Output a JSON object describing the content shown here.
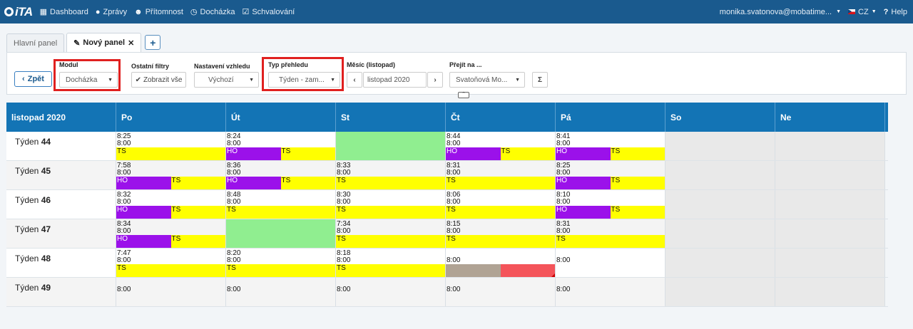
{
  "topbar": {
    "logo_text": "iTA",
    "nav": [
      {
        "icon": "grid-icon",
        "glyph": "▦",
        "label": "Dashboard"
      },
      {
        "icon": "info-icon",
        "glyph": "●",
        "label": "Zprávy"
      },
      {
        "icon": "users-icon",
        "glyph": "☻",
        "label": "Přítomnost"
      },
      {
        "icon": "clock-icon",
        "glyph": "◷",
        "label": "Docházka"
      },
      {
        "icon": "check-square-icon",
        "glyph": "☑",
        "label": "Schvalování"
      }
    ],
    "user": "monika.svatonova@mobatime...",
    "language": "CZ",
    "help": "Help"
  },
  "tabs": [
    {
      "label": "Hlavní panel",
      "active": false
    },
    {
      "label": "Nový panel",
      "active": true
    }
  ],
  "filters": {
    "back_label": "Zpět",
    "modul_label": "Modul",
    "modul_value": "Docházka",
    "other_filters_label": "Ostatní filtry",
    "show_all_label": "Zobrazit vše",
    "appearance_label": "Nastavení vzhledu",
    "appearance_value": "Výchozí",
    "view_type_label": "Typ přehledu",
    "view_type_value": "Týden - zam...",
    "month_label": "Měsíc (listopad)",
    "month_value": "listopad 2020",
    "goto_label": "Přejít na ...",
    "goto_value": "Svatoňová Mo...",
    "sigma": "Σ"
  },
  "calendar": {
    "title": "listopad 2020",
    "days": [
      "Po",
      "Út",
      "St",
      "Čt",
      "Pá",
      "So",
      "Ne"
    ],
    "weeks": [
      {
        "label": "Týden",
        "num": "44",
        "cells": [
          {
            "t1": "8:25",
            "t2": "8:00",
            "bar": [
              "ts"
            ]
          },
          {
            "t1": "8:24",
            "t2": "8:00",
            "bar": [
              "ho",
              "ts"
            ]
          },
          {
            "green": true
          },
          {
            "t1": "8:44",
            "t2": "8:00",
            "bar": [
              "ho",
              "ts"
            ]
          },
          {
            "t1": "8:41",
            "t2": "8:00",
            "bar": [
              "ho",
              "ts"
            ]
          }
        ]
      },
      {
        "label": "Týden",
        "num": "45",
        "cells": [
          {
            "t1": "7:58",
            "t2": "8:00",
            "bar": [
              "ho",
              "ts"
            ]
          },
          {
            "t1": "8:36",
            "t2": "8:00",
            "bar": [
              "ho",
              "ts"
            ]
          },
          {
            "t1": "8:33",
            "t2": "8:00",
            "bar": [
              "ts"
            ]
          },
          {
            "t1": "8:31",
            "t2": "8:00",
            "bar": [
              "ts"
            ]
          },
          {
            "t1": "8:25",
            "t2": "8:00",
            "bar": [
              "ho",
              "ts"
            ]
          }
        ]
      },
      {
        "label": "Týden",
        "num": "46",
        "cells": [
          {
            "t1": "8:32",
            "t2": "8:00",
            "bar": [
              "ho",
              "ts"
            ]
          },
          {
            "t1": "8:48",
            "t2": "8:00",
            "bar": [
              "ts"
            ]
          },
          {
            "t1": "8:30",
            "t2": "8:00",
            "bar": [
              "ts"
            ]
          },
          {
            "t1": "8:06",
            "t2": "8:00",
            "bar": [
              "ts"
            ]
          },
          {
            "t1": "8:10",
            "t2": "8:00",
            "bar": [
              "ho",
              "ts"
            ]
          }
        ]
      },
      {
        "label": "Týden",
        "num": "47",
        "cells": [
          {
            "t1": "8:34",
            "t2": "8:00",
            "bar": [
              "ho",
              "ts"
            ]
          },
          {
            "green": true
          },
          {
            "t1": "7:34",
            "t2": "8:00",
            "bar": [
              "ts"
            ]
          },
          {
            "t1": "8:15",
            "t2": "8:00",
            "bar": [
              "ts"
            ]
          },
          {
            "t1": "8:31",
            "t2": "8:00",
            "bar": [
              "ts"
            ]
          }
        ]
      },
      {
        "label": "Týden",
        "num": "48",
        "cells": [
          {
            "t1": "7:47",
            "t2": "8:00",
            "bar": [
              "ts"
            ]
          },
          {
            "t1": "8:20",
            "t2": "8:00",
            "bar": [
              "ts"
            ]
          },
          {
            "t1": "8:18",
            "t2": "8:00",
            "bar": [
              "ts"
            ]
          },
          {
            "t2": "8:00",
            "bar": [
              "grey",
              "red"
            ]
          },
          {
            "t2": "8:00"
          }
        ]
      },
      {
        "label": "Týden",
        "num": "49",
        "cells": [
          {
            "t2": "8:00"
          },
          {
            "t2": "8:00"
          },
          {
            "t2": "8:00"
          },
          {
            "t2": "8:00"
          },
          {
            "t2": "8:00"
          }
        ]
      }
    ],
    "seg_labels": {
      "ho": "HO",
      "ts": "TS",
      "grey": "",
      "red": ""
    },
    "colors": {
      "header": "#1374b5",
      "ho": "#9b11ea",
      "ts": "#ffff00",
      "green": "#90ee90",
      "grey": "#b0a394",
      "red": "#f4545a",
      "topbar": "#1a5a8e",
      "highlight": "#e0201f"
    }
  }
}
